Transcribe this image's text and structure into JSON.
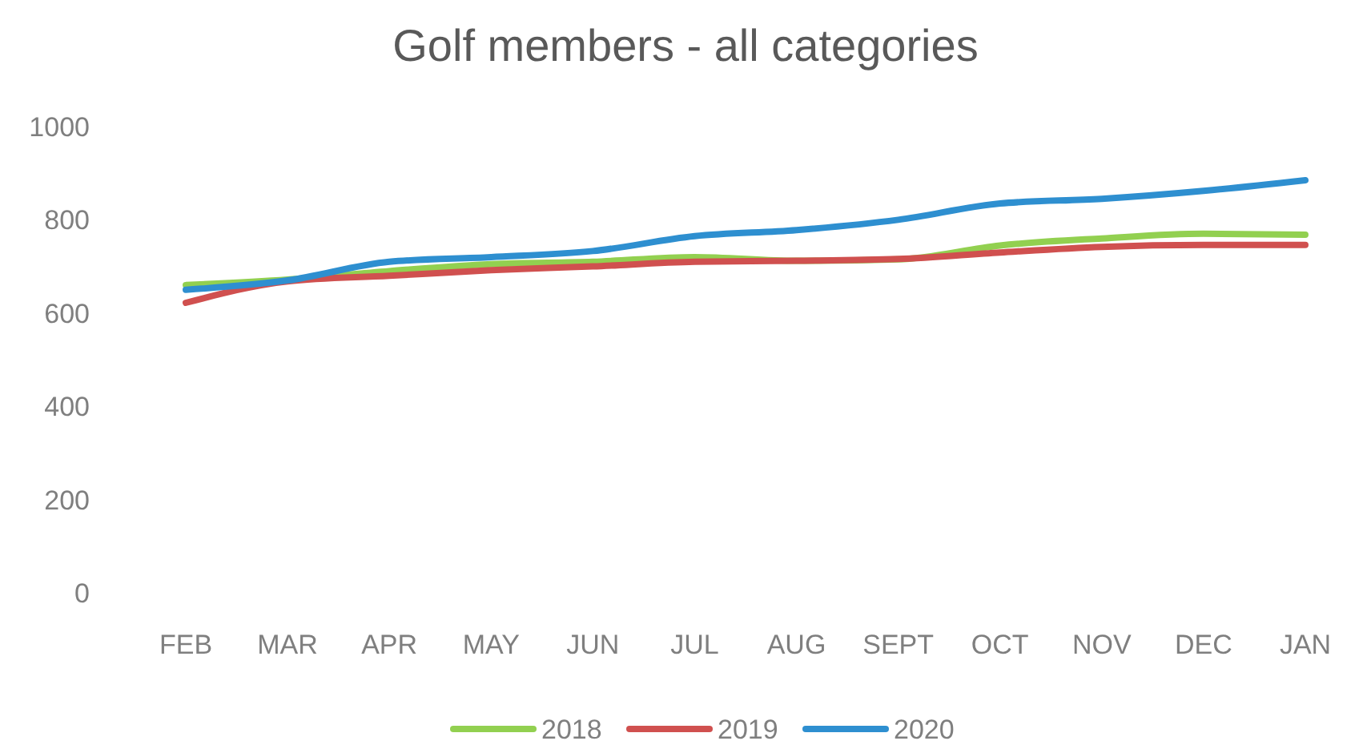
{
  "chart_data": {
    "type": "line",
    "title": "Golf members - all categories",
    "categories": [
      "FEB",
      "MAR",
      "APR",
      "MAY",
      "JUN",
      "JUL",
      "AUG",
      "SEPT",
      "OCT",
      "NOV",
      "DEC",
      "JAN"
    ],
    "series": [
      {
        "name": "2018",
        "color": "#92d050",
        "values": [
          660,
          672,
          690,
          705,
          710,
          720,
          712,
          715,
          745,
          760,
          770,
          768
        ]
      },
      {
        "name": "2019",
        "color": "#d0504f",
        "values": [
          622,
          668,
          680,
          692,
          700,
          710,
          712,
          716,
          730,
          742,
          746,
          746
        ]
      },
      {
        "name": "2020",
        "color": "#2e8fd0",
        "values": [
          650,
          670,
          710,
          720,
          733,
          765,
          778,
          800,
          835,
          845,
          862,
          885
        ]
      }
    ],
    "ylim": [
      0,
      1000
    ],
    "yticks": [
      0,
      200,
      400,
      600,
      800,
      1000
    ],
    "grid": false,
    "legend": "bottom",
    "marker": "none",
    "line_style": "solid"
  }
}
